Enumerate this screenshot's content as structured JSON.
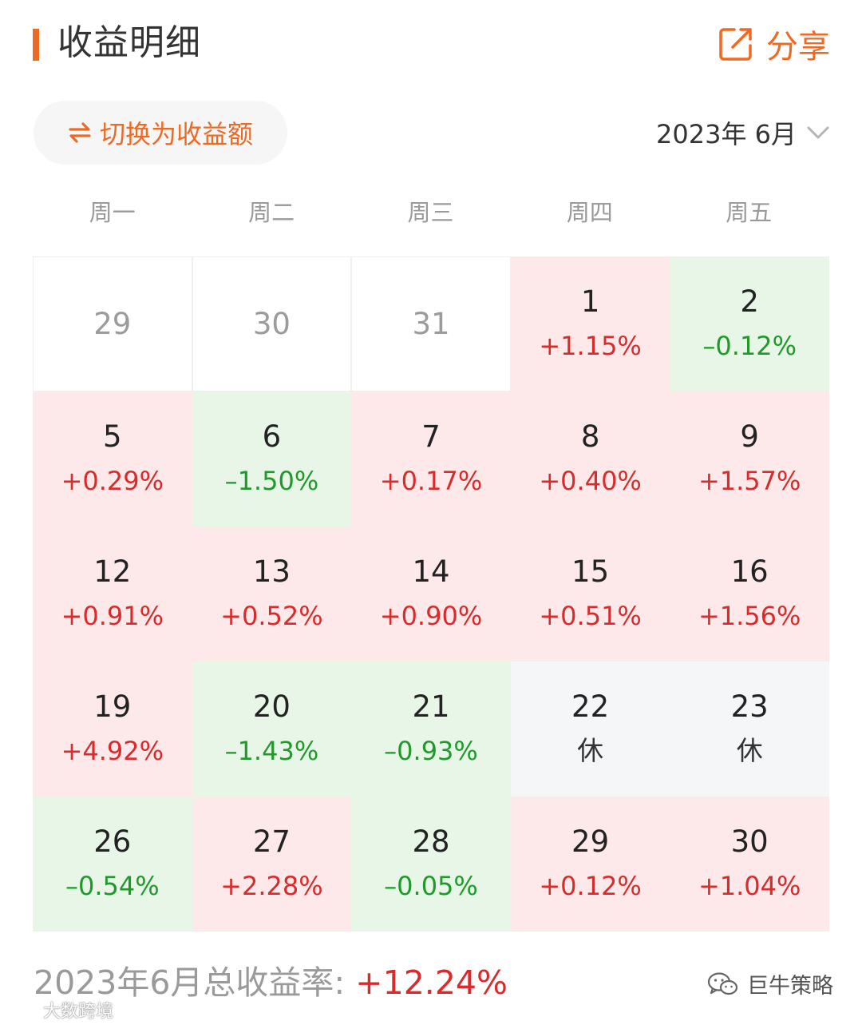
{
  "header": {
    "title": "收益明细",
    "share_label": "分享",
    "accent_color": "#ec6a23"
  },
  "toolbar": {
    "switch_label": "切换为收益额",
    "month_label": "2023年 6月"
  },
  "weekdays": [
    "周一",
    "周二",
    "周三",
    "周四",
    "周五"
  ],
  "calendar": {
    "colors": {
      "up": "#fde9e9",
      "down": "#e8f6e8",
      "rest": "#f5f6f8",
      "up_text": "#d92b2b",
      "down_text": "#1f9a2a"
    },
    "weeks": [
      [
        {
          "day": "29",
          "value": "",
          "status": "other"
        },
        {
          "day": "30",
          "value": "",
          "status": "other"
        },
        {
          "day": "31",
          "value": "",
          "status": "other"
        },
        {
          "day": "1",
          "value": "+1.15%",
          "status": "up"
        },
        {
          "day": "2",
          "value": "–0.12%",
          "status": "down"
        }
      ],
      [
        {
          "day": "5",
          "value": "+0.29%",
          "status": "up"
        },
        {
          "day": "6",
          "value": "–1.50%",
          "status": "down"
        },
        {
          "day": "7",
          "value": "+0.17%",
          "status": "up"
        },
        {
          "day": "8",
          "value": "+0.40%",
          "status": "up"
        },
        {
          "day": "9",
          "value": "+1.57%",
          "status": "up"
        }
      ],
      [
        {
          "day": "12",
          "value": "+0.91%",
          "status": "up"
        },
        {
          "day": "13",
          "value": "+0.52%",
          "status": "up"
        },
        {
          "day": "14",
          "value": "+0.90%",
          "status": "up"
        },
        {
          "day": "15",
          "value": "+0.51%",
          "status": "up"
        },
        {
          "day": "16",
          "value": "+1.56%",
          "status": "up"
        }
      ],
      [
        {
          "day": "19",
          "value": "+4.92%",
          "status": "up"
        },
        {
          "day": "20",
          "value": "–1.43%",
          "status": "down"
        },
        {
          "day": "21",
          "value": "–0.93%",
          "status": "down"
        },
        {
          "day": "22",
          "value": "休",
          "status": "rest"
        },
        {
          "day": "23",
          "value": "休",
          "status": "rest"
        }
      ],
      [
        {
          "day": "26",
          "value": "–0.54%",
          "status": "down"
        },
        {
          "day": "27",
          "value": "+2.28%",
          "status": "up"
        },
        {
          "day": "28",
          "value": "–0.05%",
          "status": "down"
        },
        {
          "day": "29",
          "value": "+0.12%",
          "status": "up"
        },
        {
          "day": "30",
          "value": "+1.04%",
          "status": "up"
        }
      ]
    ]
  },
  "summary": {
    "label": "2023年6月总收益率: ",
    "value": "+12.24%"
  },
  "watermarks": {
    "right": "巨牛策略",
    "left": "大数跨境"
  }
}
